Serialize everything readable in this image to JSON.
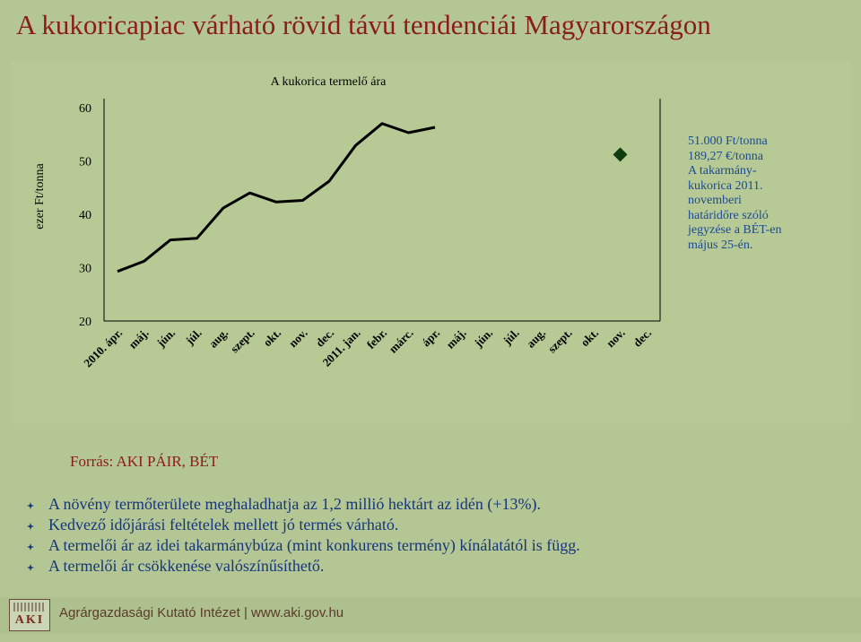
{
  "slide": {
    "title": "A kukoricapiac várható rövid távú tendenciái Magyarországon"
  },
  "chart_data": {
    "type": "line",
    "title": "A kukorica termelő ára",
    "ylabel": "ezer Ft/tonna",
    "xlabel": "",
    "ylim": [
      20,
      60
    ],
    "yticks": [
      "60",
      "50",
      "40",
      "30",
      "20"
    ],
    "categories": [
      "2010. ápr.",
      "máj.",
      "jún.",
      "júl.",
      "aug.",
      "szept.",
      "okt.",
      "nov.",
      "dec.",
      "2011. jan.",
      "febr.",
      "márc.",
      "ápr.",
      "máj.",
      "jún.",
      "júl.",
      "aug.",
      "szept.",
      "okt.",
      "nov.",
      "dec."
    ],
    "series": [
      {
        "values": [
          29.3,
          31.2,
          35.2,
          35.5,
          41.2,
          44,
          42.3,
          42.6,
          46.2,
          52.9,
          57,
          55.3,
          56.3,
          null,
          null,
          null,
          null,
          null,
          null,
          null,
          null
        ],
        "color": "#000000"
      }
    ],
    "marker": {
      "category": "nov.",
      "index": 19,
      "value": 51.2,
      "shape": "diamond",
      "color": "#0f3d0f"
    },
    "grid": false
  },
  "annotation": {
    "color": "#1c4a91",
    "lines": [
      "51.000 Ft/tonna",
      "189,27 €/tonna",
      "A takarmány-",
      "kukorica 2011.",
      "novemberi",
      "határidőre szóló",
      "jegyzése a BÉT-en",
      "május 25-én."
    ]
  },
  "source": "Forrás: AKI PÁIR, BÉT",
  "bullets": [
    "A növény termőterülete meghaladhatja az 1,2 millió hektárt az idén (+13%).",
    "Kedvező időjárási feltételek mellett jó termés várható.",
    "A termelői ár az idei takarmánybúza (mint konkurens termény) kínálatától is függ.",
    "A termelői ár csökkenése valószínűsíthető."
  ],
  "footer": {
    "logo_text": "AKI",
    "text": "Agrárgazdasági Kutató Intézet | www.aki.gov.hu"
  },
  "colors": {
    "background": "#b3c694",
    "title": "#8b1c1c",
    "bullet_text": "#17367a"
  }
}
